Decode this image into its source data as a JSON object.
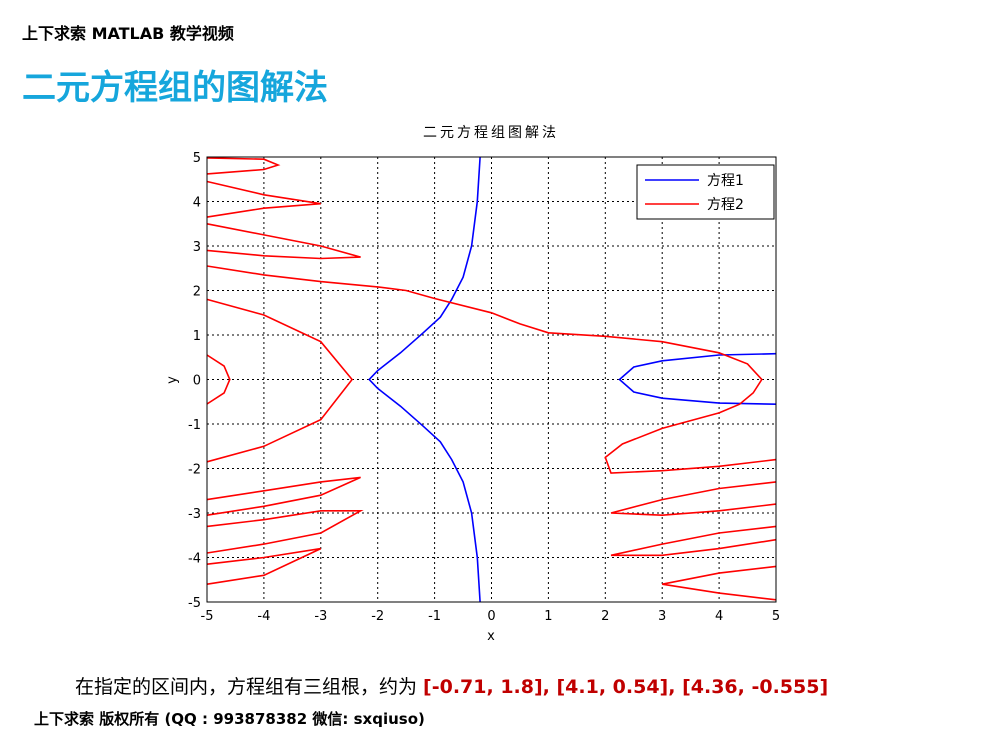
{
  "slide": {
    "header": "上下求索 MATLAB 教学视频",
    "title": "二元方程组的图解法",
    "note": "在指定的区间内，方程组有三组根，约为 ",
    "roots": "[-0.71, 1.8], [4.1, 0.54], [4.36, -0.555]",
    "footer": "上下求索  版权所有  (QQ : 993878382   微信: sxqiuso)"
  },
  "chart_data": {
    "type": "line",
    "title": "二元方程组图解法",
    "x_label": "x",
    "y_label": "y",
    "xlim": [
      -5,
      5
    ],
    "ylim": [
      -5,
      5
    ],
    "xticks": [
      -5,
      -4,
      -3,
      -2,
      -1,
      0,
      1,
      2,
      3,
      4,
      5
    ],
    "yticks": [
      -5,
      -4,
      -3,
      -2,
      -1,
      0,
      1,
      2,
      3,
      4,
      5
    ],
    "grid": true,
    "legend": "upper right",
    "series": [
      {
        "name": "方程1",
        "color": "#0000ff",
        "x": [
          -0.2,
          -0.25,
          -0.35,
          -0.5,
          -0.7,
          -0.9,
          -1.2,
          -1.6,
          -2.0,
          -2.15,
          -2.0,
          -1.6,
          -1.2,
          -0.9,
          -0.7,
          -0.5,
          -0.35,
          -0.25,
          -0.2,
          null,
          5,
          4,
          3,
          2.5,
          2.25,
          2.5,
          3,
          4,
          5
        ],
        "values": [
          5,
          4,
          3,
          2.3,
          1.8,
          1.4,
          1.05,
          0.6,
          0.2,
          0,
          -0.2,
          -0.6,
          -1.05,
          -1.4,
          -1.8,
          -2.3,
          -3,
          -4,
          -5,
          null,
          0.58,
          0.55,
          0.42,
          0.28,
          0,
          -0.28,
          -0.42,
          -0.53,
          -0.555
        ]
      },
      {
        "name": "方程2",
        "color": "#ff0000",
        "x": [
          -5,
          -4,
          -3.75,
          -4,
          -5,
          null,
          -5,
          -4,
          -3,
          -4,
          -5,
          null,
          -5,
          -4,
          -3,
          -2.3,
          -3,
          -4,
          -5,
          null,
          -5,
          -4,
          -3,
          -2,
          -1.5,
          -1,
          0,
          0.5,
          1,
          2,
          3,
          4,
          4.5,
          4.75,
          4.6,
          4.36,
          4,
          3,
          2.3,
          2,
          2.1,
          3,
          4,
          5,
          null,
          -5,
          -4,
          -3,
          -2.45,
          -3,
          -4,
          -5,
          null,
          -5,
          -4.7,
          -4.6,
          -4.7,
          -5,
          null,
          -5,
          -4,
          -3,
          -2.3,
          -3,
          -4,
          -5,
          null,
          -5,
          -4,
          -3,
          -2.3,
          -3,
          -4,
          -5,
          null,
          -5,
          -4,
          -3,
          -4,
          -5,
          null,
          5,
          4,
          3,
          2.1,
          3,
          4,
          5,
          null,
          5,
          4,
          3,
          2.1,
          3,
          4,
          5,
          null,
          5,
          4,
          3,
          4,
          5
        ],
        "values": [
          4.98,
          4.95,
          4.82,
          4.72,
          4.62,
          null,
          4.45,
          4.15,
          3.95,
          3.85,
          3.65,
          null,
          3.5,
          3.25,
          3.0,
          2.75,
          2.72,
          2.78,
          2.9,
          null,
          2.55,
          2.35,
          2.2,
          2.08,
          2.0,
          1.82,
          1.5,
          1.25,
          1.05,
          0.97,
          0.85,
          0.6,
          0.35,
          0,
          -0.3,
          -0.555,
          -0.75,
          -1.1,
          -1.45,
          -1.75,
          -2.1,
          -2.05,
          -1.95,
          -1.8,
          null,
          1.8,
          1.45,
          0.85,
          0,
          -0.9,
          -1.5,
          -1.85,
          null,
          0.55,
          0.3,
          0,
          -0.3,
          -0.55,
          null,
          -2.7,
          -2.5,
          -2.3,
          -2.2,
          -2.6,
          -2.85,
          -3.05,
          null,
          -3.3,
          -3.15,
          -2.95,
          -2.95,
          -3.45,
          -3.7,
          -3.9,
          null,
          -4.15,
          -4.0,
          -3.8,
          -4.4,
          -4.6,
          null,
          -2.3,
          -2.45,
          -2.7,
          -3.0,
          -3.05,
          -2.95,
          -2.8,
          null,
          -3.3,
          -3.45,
          -3.7,
          -3.95,
          -3.95,
          -3.8,
          -3.6,
          null,
          -4.2,
          -4.35,
          -4.6,
          -4.8,
          -4.95
        ]
      }
    ]
  }
}
